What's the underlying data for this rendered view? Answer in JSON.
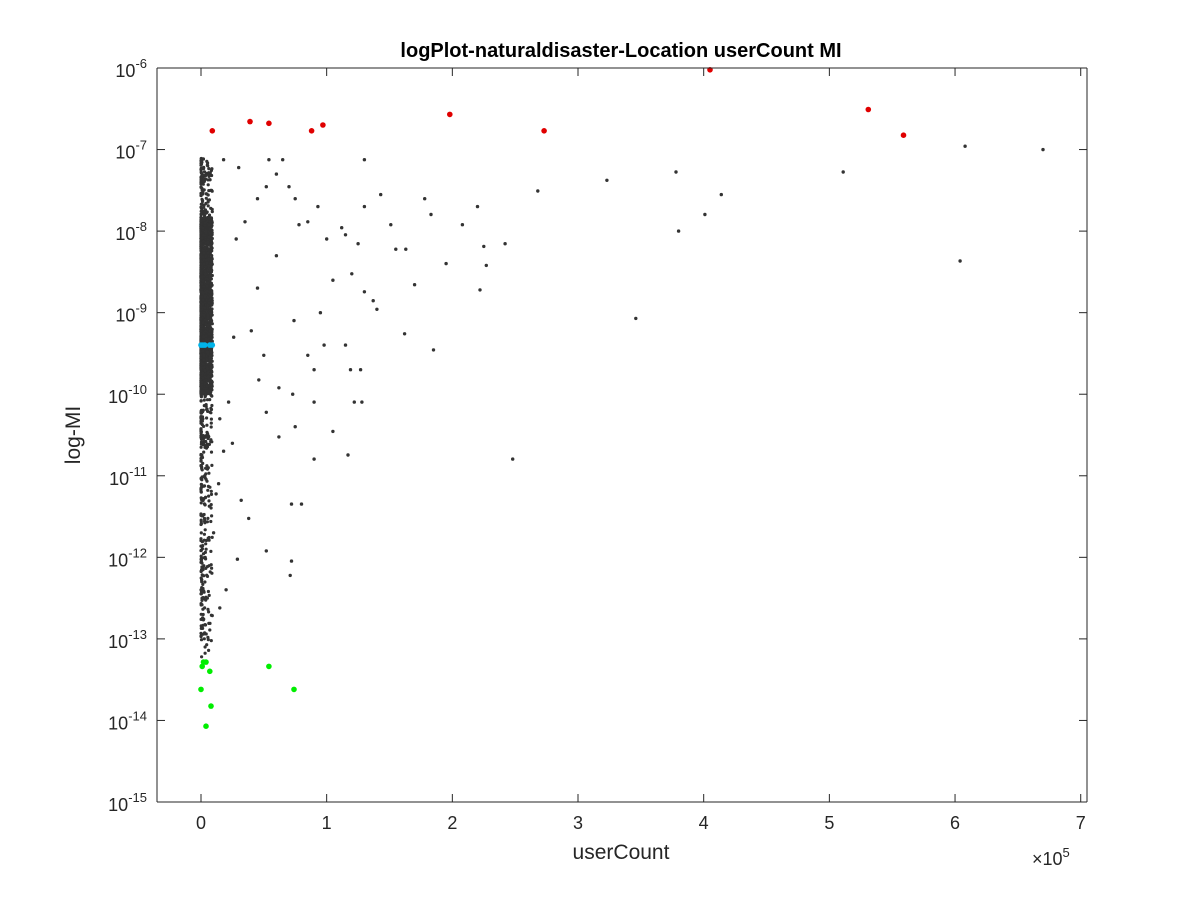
{
  "chart_data": {
    "type": "scatter",
    "title": "logPlot-naturaldisaster-Location userCount MI",
    "xlabel": "userCount",
    "ylabel": "log-MI",
    "x_multiplier_label": "×10",
    "x_multiplier_exponent": "5",
    "xlim": [
      -35000,
      705000
    ],
    "ylim": [
      1e-15,
      1e-06
    ],
    "y_scale": "log",
    "grid": false,
    "x_ticks": [
      0,
      100000,
      200000,
      300000,
      400000,
      500000,
      600000,
      700000
    ],
    "x_tick_labels": [
      "0",
      "1",
      "2",
      "3",
      "4",
      "5",
      "6",
      "7"
    ],
    "y_ticks": [
      1e-15,
      1e-14,
      1e-13,
      1e-12,
      1e-11,
      1e-10,
      1e-09,
      1e-08,
      1e-07,
      1e-06
    ],
    "y_tick_base": "10",
    "y_tick_exponents": [
      "-15",
      "-14",
      "-13",
      "-12",
      "-11",
      "-10",
      "-9",
      "-8",
      "-7",
      "-6"
    ],
    "series": [
      {
        "color": "#e00000",
        "marker_size": "large",
        "points": [
          [
            9000,
            1.7e-07
          ],
          [
            39000,
            2.2e-07
          ],
          [
            54000,
            2.1e-07
          ],
          [
            88000,
            1.7e-07
          ],
          [
            97000,
            2e-07
          ],
          [
            198000,
            2.7e-07
          ],
          [
            273000,
            1.7e-07
          ],
          [
            405000,
            9.5e-07
          ],
          [
            531000,
            3.1e-07
          ],
          [
            559000,
            1.5e-07
          ]
        ]
      },
      {
        "color": "#00b4ea",
        "marker_size": "large",
        "points": [
          [
            0,
            4e-10
          ],
          [
            1500,
            4e-10
          ],
          [
            3000,
            4e-10
          ],
          [
            7000,
            4e-10
          ],
          [
            9000,
            4e-10
          ]
        ]
      },
      {
        "color": "#00ee00",
        "marker_size": "large",
        "points": [
          [
            1000,
            4.6e-14
          ],
          [
            2000,
            5.2e-14
          ],
          [
            4000,
            5.2e-14
          ],
          [
            7000,
            4e-14
          ],
          [
            54000,
            4.6e-14
          ],
          [
            0,
            2.4e-14
          ],
          [
            74000,
            2.4e-14
          ],
          [
            8000,
            1.5e-14
          ],
          [
            4000,
            8.5e-15
          ]
        ]
      },
      {
        "color": "#333333",
        "marker_size": "small",
        "points": [
          [
            18000,
            7.5e-08
          ],
          [
            30000,
            6e-08
          ],
          [
            54000,
            7.5e-08
          ],
          [
            60000,
            5e-08
          ],
          [
            65000,
            7.5e-08
          ],
          [
            52000,
            3.5e-08
          ],
          [
            45000,
            2.5e-08
          ],
          [
            70000,
            3.5e-08
          ],
          [
            75000,
            2.5e-08
          ],
          [
            78000,
            1.2e-08
          ],
          [
            85000,
            1.3e-08
          ],
          [
            93000,
            2e-08
          ],
          [
            100000,
            8e-09
          ],
          [
            105000,
            2.5e-09
          ],
          [
            112000,
            1.1e-08
          ],
          [
            115000,
            9e-09
          ],
          [
            120000,
            3e-09
          ],
          [
            125000,
            7e-09
          ],
          [
            130000,
            7.5e-08
          ],
          [
            143000,
            2.8e-08
          ],
          [
            130000,
            2e-08
          ],
          [
            155000,
            6e-09
          ],
          [
            162000,
            5.5e-10
          ],
          [
            170000,
            2.2e-09
          ],
          [
            178000,
            2.5e-08
          ],
          [
            183000,
            1.6e-08
          ],
          [
            185000,
            3.5e-10
          ],
          [
            195000,
            4e-09
          ],
          [
            208000,
            1.2e-08
          ],
          [
            220000,
            2e-08
          ],
          [
            225000,
            6.5e-09
          ],
          [
            227000,
            3.8e-09
          ],
          [
            222000,
            1.9e-09
          ],
          [
            242000,
            7e-09
          ],
          [
            248000,
            1.6e-11
          ],
          [
            268000,
            3.1e-08
          ],
          [
            323000,
            4.2e-08
          ],
          [
            346000,
            8.5e-10
          ],
          [
            378000,
            5.3e-08
          ],
          [
            380000,
            1e-08
          ],
          [
            401000,
            1.6e-08
          ],
          [
            414000,
            2.8e-08
          ],
          [
            511000,
            5.3e-08
          ],
          [
            604000,
            4.3e-09
          ],
          [
            608000,
            1.1e-07
          ],
          [
            670000,
            1e-07
          ],
          [
            90000,
            2e-10
          ],
          [
            90000,
            8e-11
          ],
          [
            90000,
            1.6e-11
          ],
          [
            80000,
            4.5e-12
          ],
          [
            72000,
            4.5e-12
          ],
          [
            72000,
            9e-13
          ],
          [
            71000,
            6e-13
          ],
          [
            62000,
            3e-11
          ],
          [
            52000,
            1.2e-12
          ],
          [
            29000,
            9.5e-13
          ],
          [
            20000,
            4e-13
          ],
          [
            15000,
            2.4e-13
          ],
          [
            15000,
            5e-11
          ],
          [
            38000,
            3e-12
          ],
          [
            46000,
            1.5e-10
          ],
          [
            50000,
            3e-10
          ],
          [
            52000,
            6e-11
          ],
          [
            62000,
            1.2e-10
          ],
          [
            73000,
            1e-10
          ],
          [
            75000,
            4e-11
          ],
          [
            74000,
            8e-10
          ],
          [
            85000,
            3e-10
          ],
          [
            95000,
            1e-09
          ],
          [
            98000,
            4e-10
          ],
          [
            105000,
            3.5e-11
          ],
          [
            117000,
            1.8e-11
          ],
          [
            119000,
            2e-10
          ],
          [
            115000,
            4e-10
          ],
          [
            122000,
            8e-11
          ],
          [
            128000,
            8e-11
          ],
          [
            127000,
            2e-10
          ],
          [
            130000,
            1.8e-09
          ],
          [
            140000,
            1.1e-09
          ],
          [
            137000,
            1.4e-09
          ],
          [
            151000,
            1.2e-08
          ],
          [
            163000,
            6e-09
          ],
          [
            45000,
            2e-09
          ],
          [
            60000,
            5e-09
          ],
          [
            35000,
            1.3e-08
          ],
          [
            28000,
            8e-09
          ],
          [
            40000,
            6e-10
          ],
          [
            25000,
            2.5e-11
          ],
          [
            32000,
            5e-12
          ],
          [
            12000,
            6e-12
          ],
          [
            10000,
            2e-12
          ],
          [
            14000,
            8e-12
          ],
          [
            18000,
            2e-11
          ],
          [
            22000,
            8e-11
          ],
          [
            26000,
            5e-10
          ]
        ]
      }
    ],
    "dense_band": {
      "color": "#333333",
      "x_range": [
        0,
        9000
      ],
      "y_range": [
        5e-14,
        8e-08
      ],
      "core_y_range": [
        1e-10,
        1.5e-08
      ],
      "points_estimate": 2500
    }
  }
}
